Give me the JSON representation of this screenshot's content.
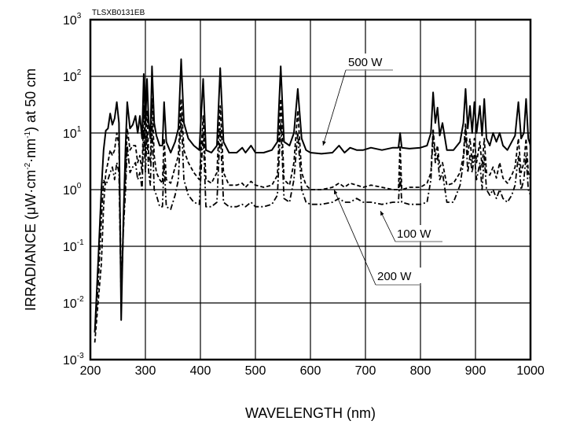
{
  "chart_data": {
    "type": "line",
    "code": "TLSXB0131EB",
    "xlabel": "WAVELENGTH (nm)",
    "ylabel": {
      "prefix": "IRRADIANCE (μW·cm",
      "exp1": "-2",
      "mid": "·nm",
      "exp2": "-1",
      "suffix": ") at 50 cm"
    },
    "xlim": [
      200,
      1000
    ],
    "ylim": [
      0.001,
      1000
    ],
    "yscale": "log",
    "grid": true,
    "x_ticks": [
      "200",
      "300",
      "400",
      "500",
      "600",
      "700",
      "800",
      "900",
      "1000"
    ],
    "y_ticks": [
      {
        "base": "10",
        "exp": "-3"
      },
      {
        "base": "10",
        "exp": "-2"
      },
      {
        "base": "10",
        "exp": "-1"
      },
      {
        "base": "10",
        "exp": "0"
      },
      {
        "base": "10",
        "exp": "1"
      },
      {
        "base": "10",
        "exp": "2"
      },
      {
        "base": "10",
        "exp": "3"
      }
    ],
    "x": [
      208,
      214,
      220,
      224,
      228,
      232,
      236,
      240,
      244,
      248,
      252,
      256,
      260,
      264,
      267,
      272,
      277,
      282,
      286,
      290,
      294,
      297,
      300,
      303,
      306,
      309,
      312,
      316,
      320,
      326,
      331,
      334,
      338,
      346,
      354,
      360,
      365,
      370,
      378,
      388,
      398,
      405,
      410,
      420,
      430,
      436,
      442,
      452,
      466,
      476,
      482,
      492,
      500,
      515,
      530,
      540,
      546,
      552,
      562,
      570,
      577,
      584,
      592,
      600,
      620,
      640,
      652,
      662,
      672,
      684,
      696,
      710,
      730,
      750,
      760,
      763,
      766,
      780,
      800,
      812,
      819,
      823,
      827,
      831,
      835,
      840,
      848,
      860,
      872,
      878,
      882,
      886,
      890,
      894,
      898,
      902,
      908,
      912,
      916,
      920,
      926,
      932,
      938,
      944,
      950,
      958,
      966,
      972,
      978,
      983,
      988,
      992,
      996,
      1000
    ],
    "series": [
      {
        "name": "500 W",
        "style": "solid",
        "values": [
          0.003,
          0.05,
          1,
          5,
          11,
          12,
          22,
          14,
          18,
          35,
          15,
          0.005,
          0.3,
          6,
          35,
          12,
          14,
          20,
          10,
          20,
          8,
          110,
          15,
          90,
          15,
          8,
          150,
          15,
          9,
          6,
          6,
          35,
          7,
          4.5,
          7,
          12,
          200,
          15,
          8,
          6,
          5,
          90,
          5,
          4.5,
          6,
          140,
          7,
          4.5,
          4.5,
          5.5,
          4.5,
          6,
          4.5,
          4.5,
          5,
          7,
          150,
          7,
          6,
          10,
          60,
          8,
          5,
          4.5,
          4.3,
          4.5,
          6,
          4.5,
          5.5,
          5,
          5,
          5.5,
          5,
          5.5,
          5.5,
          10,
          5.5,
          5.3,
          5.5,
          6,
          10,
          52,
          15,
          28,
          9,
          15,
          5,
          5,
          7,
          15,
          60,
          12,
          30,
          10,
          35,
          10,
          30,
          9,
          40,
          8,
          6,
          10,
          7,
          10,
          6,
          5,
          7,
          9,
          35,
          8,
          10,
          40,
          8,
          6
        ]
      },
      {
        "name": "200 W",
        "style": "dashed",
        "values": [
          0.002,
          0.01,
          0.05,
          0.5,
          2,
          3,
          5,
          4,
          5,
          10,
          6,
          0.02,
          0.2,
          2,
          12,
          5,
          6,
          6,
          3,
          4,
          2,
          30,
          4,
          25,
          4,
          3,
          40,
          4,
          2,
          1.5,
          1.3,
          8,
          1.5,
          1.3,
          2.5,
          4,
          40,
          5,
          3,
          2,
          1.5,
          20,
          1.5,
          1.3,
          2,
          30,
          2,
          1.2,
          1.2,
          1.3,
          1.1,
          1.4,
          1.2,
          1.1,
          1.2,
          1.8,
          40,
          1.5,
          1.2,
          3,
          25,
          2,
          1.2,
          1.0,
          1.0,
          1.1,
          1.3,
          1.1,
          1.3,
          1.2,
          1.1,
          1.2,
          1.1,
          1.0,
          1.0,
          6,
          1.0,
          1.1,
          1.1,
          1.3,
          2,
          12,
          4,
          6,
          2.5,
          3,
          1.2,
          1.3,
          2,
          4,
          15,
          4,
          8,
          3,
          8,
          3,
          7,
          2.5,
          8,
          2,
          1.8,
          2.5,
          1.6,
          3,
          1.6,
          1.3,
          1.8,
          2.5,
          8,
          2,
          3,
          8,
          2,
          1.5
        ]
      },
      {
        "name": "100 W",
        "style": "dash-dot",
        "values": [
          0.003,
          0.02,
          0.3,
          1.5,
          1.2,
          1.5,
          2,
          2.5,
          1.5,
          3,
          2,
          0.01,
          0.2,
          1,
          6,
          2,
          2.5,
          3,
          1.5,
          2,
          1,
          12,
          2,
          10,
          2,
          1.2,
          15,
          1,
          0.8,
          0.5,
          0.5,
          3,
          0.5,
          0.45,
          0.8,
          1.5,
          20,
          1.5,
          0.8,
          0.6,
          0.55,
          10,
          0.5,
          0.5,
          0.6,
          12,
          0.6,
          0.5,
          0.5,
          0.55,
          0.5,
          0.6,
          0.5,
          0.5,
          0.55,
          0.8,
          15,
          0.7,
          0.6,
          1.5,
          10,
          1,
          0.6,
          0.55,
          0.55,
          0.6,
          0.7,
          0.6,
          0.6,
          0.7,
          0.6,
          0.6,
          0.55,
          0.6,
          0.6,
          2,
          0.6,
          0.55,
          0.55,
          0.6,
          1.5,
          10,
          3,
          4,
          1.5,
          2,
          0.6,
          0.6,
          1.2,
          3,
          12,
          2,
          4,
          2,
          4,
          1.5,
          3,
          1,
          4,
          1,
          0.8,
          1,
          0.7,
          1,
          0.7,
          0.6,
          0.8,
          1.2,
          4,
          1,
          1.5,
          4,
          1,
          0.8
        ]
      }
    ]
  }
}
